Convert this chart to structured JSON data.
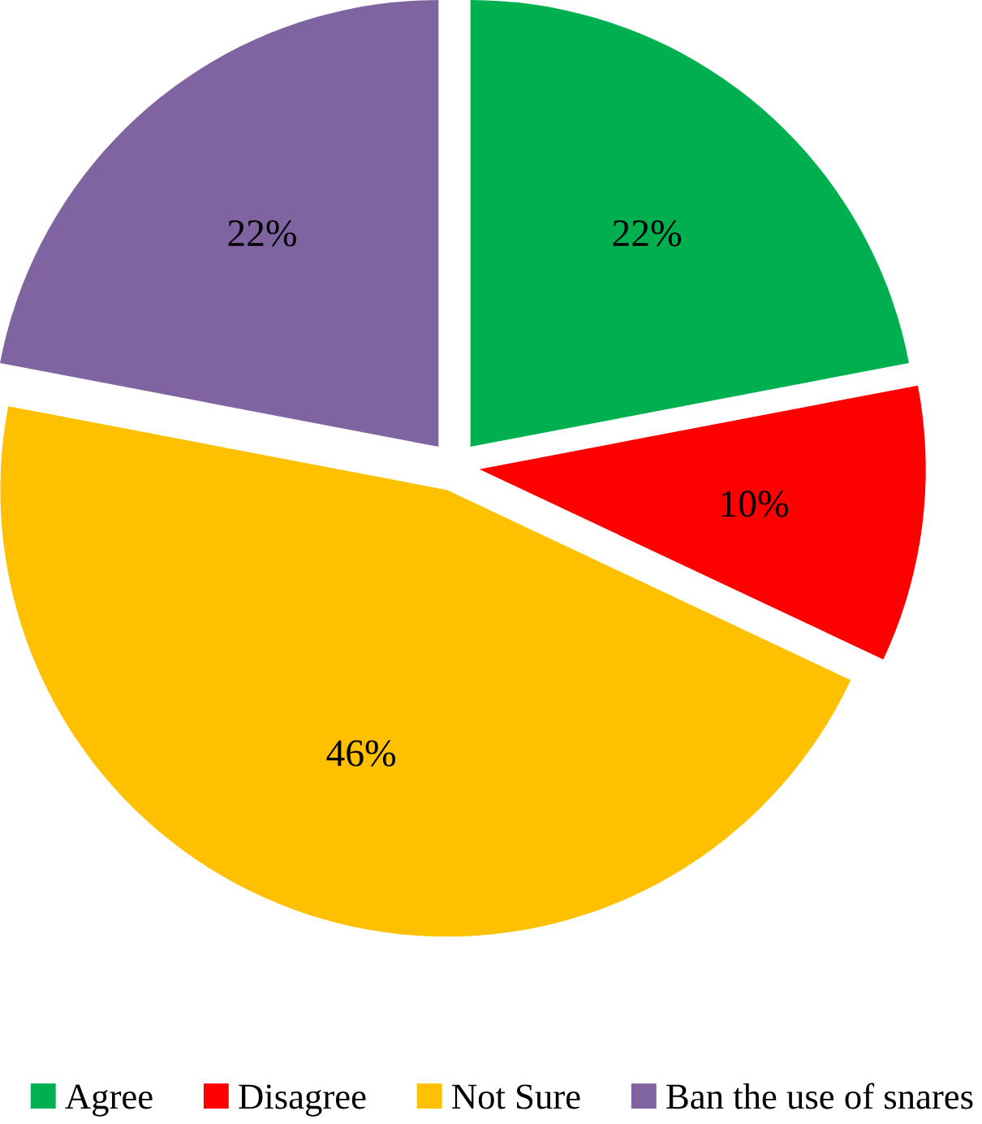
{
  "chart_data": {
    "type": "pie",
    "categories": [
      "Agree",
      "Disagree",
      "Not Sure",
      "Ban the use of snares"
    ],
    "values": [
      22,
      10,
      46,
      22
    ],
    "colors": [
      "#00b050",
      "#ff0000",
      "#ffc000",
      "#8064a2"
    ],
    "value_labels": [
      "22%",
      "10%",
      "46%",
      "22%"
    ],
    "legend": "bottom"
  }
}
